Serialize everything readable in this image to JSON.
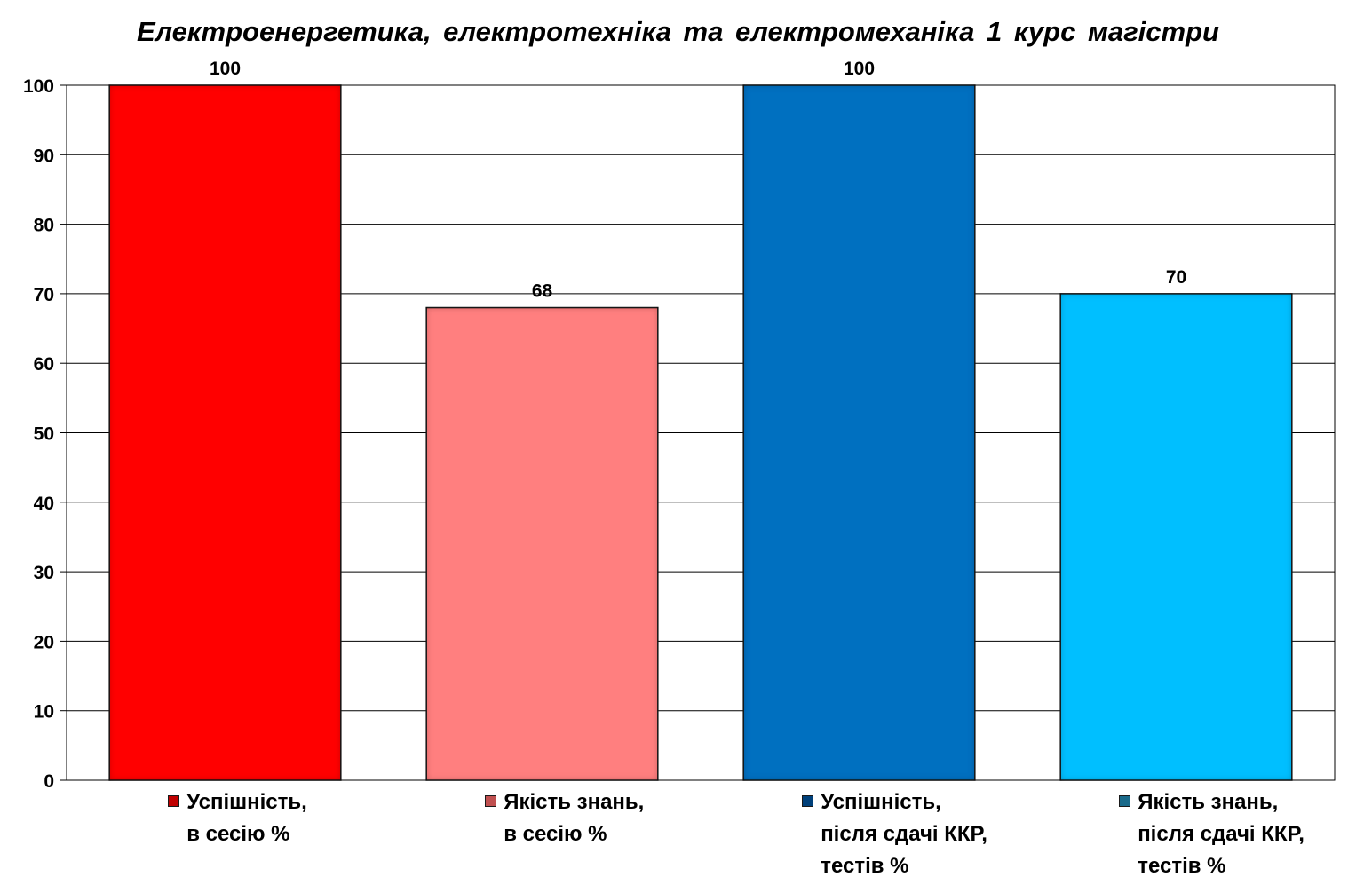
{
  "chart_data": {
    "type": "bar",
    "title": "Електроенергетика,  електротехніка  та електромеханіка  1 курс  магістри",
    "categories": [
      "Успішність,\nв сесію %",
      "Якість знань,\nв сесію %",
      "Успішність,\nпісля сдачі ККР,\nтестів %",
      "Якість знань,\nпісля сдачі ККР,\nтестів %"
    ],
    "values": [
      100,
      68,
      100,
      70
    ],
    "data_labels": [
      "100",
      "68",
      "100",
      "70"
    ],
    "colors": [
      "#ff0000",
      "#ff7f7f",
      "#0070c0",
      "#00bfff"
    ],
    "swatch_colors": [
      "#c00000",
      "#c05050",
      "#00407a",
      "#1a6a8a"
    ],
    "ylim": [
      0,
      100
    ],
    "yticks": [
      "0",
      "10",
      "20",
      "30",
      "40",
      "50",
      "60",
      "70",
      "80",
      "90",
      "100"
    ],
    "xlabel": "",
    "ylabel": "",
    "grid": true,
    "legend_position": "bottom"
  }
}
